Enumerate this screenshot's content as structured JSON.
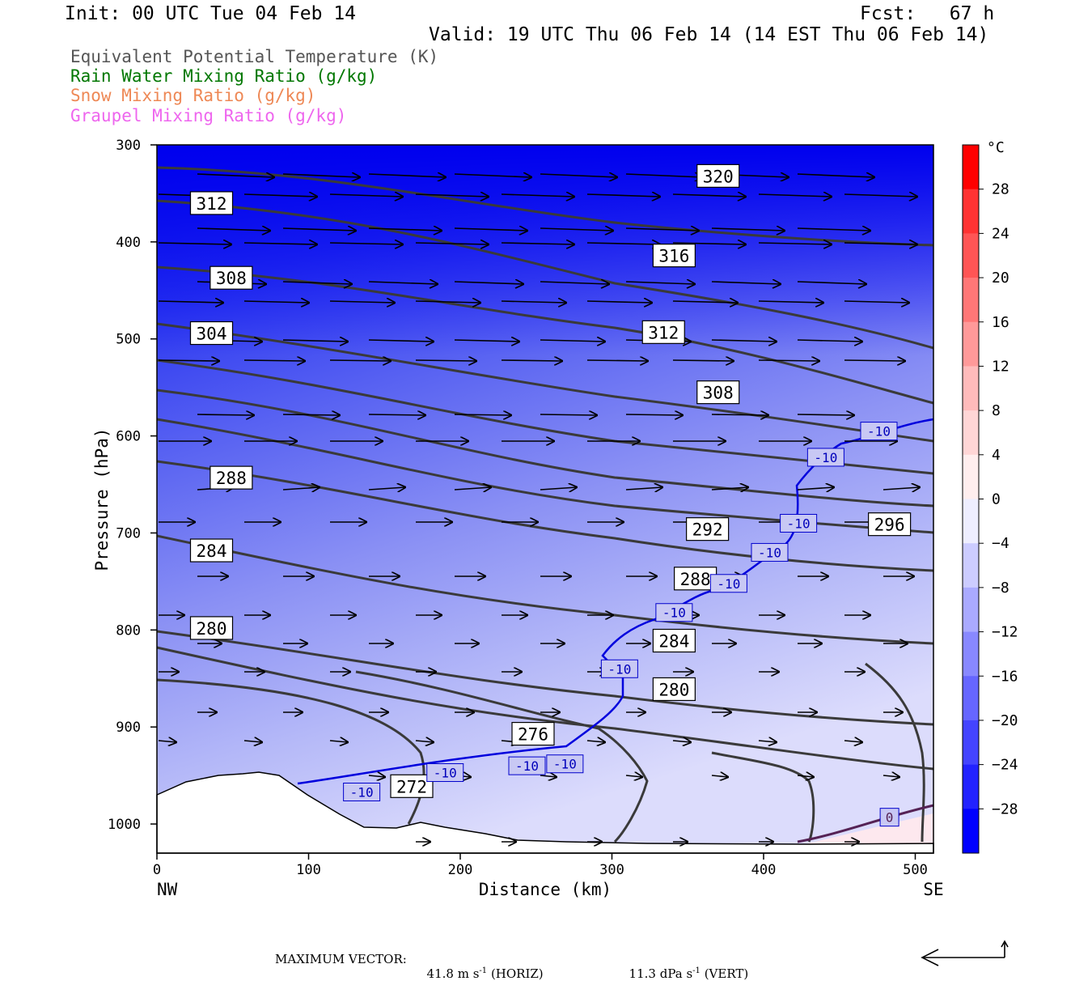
{
  "header": {
    "init": "Init: 00 UTC Tue 04 Feb 14",
    "fcst": "Fcst:   67 h",
    "valid": "Valid: 19 UTC Thu 06 Feb 14 (14 EST Thu 06 Feb 14)"
  },
  "fields": [
    {
      "label": "Equivalent Potential Temperature (K)",
      "color": "#555555"
    },
    {
      "label": "Rain Water Mixing Ratio (g/kg)",
      "color": "#007700"
    },
    {
      "label": "Snow Mixing Ratio (g/kg)",
      "color": "#ee8855"
    },
    {
      "label": "Graupel Mixing Ratio (g/kg)",
      "color": "#ee66ee"
    }
  ],
  "chart_data": {
    "type": "contour",
    "xlabel": "Distance (km)",
    "ylabel": "Pressure (hPa)",
    "xlim": [
      0,
      512
    ],
    "ylim": [
      1030,
      300
    ],
    "x_ticks": [
      0,
      100,
      200,
      300,
      400,
      500
    ],
    "y_ticks": [
      300,
      400,
      500,
      600,
      700,
      800,
      900,
      1000
    ],
    "x_end_labels": {
      "left": "NW",
      "right": "SE"
    },
    "colorbar": {
      "unit": "°C",
      "tick_labels": [
        "28",
        "24",
        "20",
        "16",
        "12",
        "8",
        "4",
        "0",
        "-4",
        "-8",
        "-12",
        "-16",
        "-20",
        "-24",
        "-28"
      ]
    },
    "theta_e_labels": [
      {
        "text": "320",
        "x": 370,
        "p": 332
      },
      {
        "text": "316",
        "x": 341,
        "p": 414
      },
      {
        "text": "312",
        "x": 36,
        "p": 360
      },
      {
        "text": "312",
        "x": 334,
        "p": 493
      },
      {
        "text": "308",
        "x": 49,
        "p": 437
      },
      {
        "text": "308",
        "x": 370,
        "p": 555
      },
      {
        "text": "304",
        "x": 36,
        "p": 494
      },
      {
        "text": "296",
        "x": 483,
        "p": 691
      },
      {
        "text": "292",
        "x": 363,
        "p": 696
      },
      {
        "text": "288",
        "x": 49,
        "p": 643
      },
      {
        "text": "288",
        "x": 355,
        "p": 747
      },
      {
        "text": "284",
        "x": 36,
        "p": 718
      },
      {
        "text": "284",
        "x": 341,
        "p": 811
      },
      {
        "text": "280",
        "x": 36,
        "p": 798
      },
      {
        "text": "280",
        "x": 341,
        "p": 861
      },
      {
        "text": "276",
        "x": 248,
        "p": 907
      },
      {
        "text": "272",
        "x": 168,
        "p": 961
      }
    ],
    "temp_labels": [
      {
        "text": "-10",
        "x": 476,
        "p": 595
      },
      {
        "text": "-10",
        "x": 441,
        "p": 622
      },
      {
        "text": "-10",
        "x": 423,
        "p": 690
      },
      {
        "text": "-10",
        "x": 404,
        "p": 720
      },
      {
        "text": "-10",
        "x": 377,
        "p": 752
      },
      {
        "text": "-10",
        "x": 341,
        "p": 782
      },
      {
        "text": "-10",
        "x": 305,
        "p": 840
      },
      {
        "text": "-10",
        "x": 269,
        "p": 938
      },
      {
        "text": "-10",
        "x": 244,
        "p": 940
      },
      {
        "text": "-10",
        "x": 190,
        "p": 947
      },
      {
        "text": "-10",
        "x": 135,
        "p": 967
      },
      {
        "text": "0",
        "x": 483,
        "p": 993
      }
    ]
  },
  "footer": {
    "max_vector_label": "MAXIMUM VECTOR:",
    "horiz": "41.8 m s",
    "horiz_unit": "(HORIZ)",
    "vert": "11.3 dPa s",
    "vert_unit": "(VERT)",
    "exp": "-1"
  }
}
